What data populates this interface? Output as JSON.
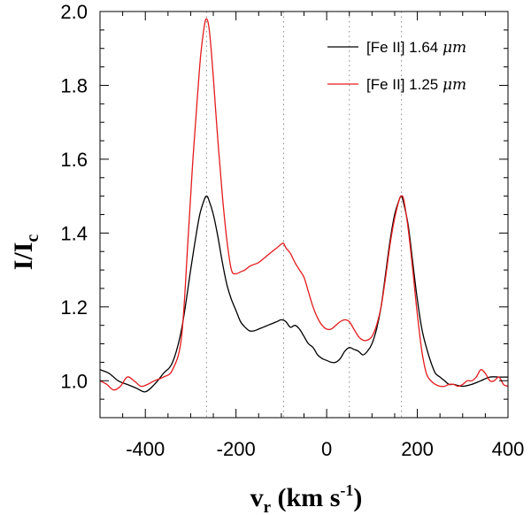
{
  "chart_data": {
    "type": "line",
    "title": "",
    "xlabel": {
      "main": "v",
      "sub": "r",
      "units_pre": " (km s",
      "units_sup": "-1",
      "units_post": ")"
    },
    "ylabel": {
      "main": "I/I",
      "sub": "c"
    },
    "xlim": [
      -500,
      400
    ],
    "ylim": [
      0.9,
      2.0
    ],
    "xticks": [
      -400,
      -200,
      0,
      200,
      400
    ],
    "xtick_labels": [
      "-400",
      "-200",
      "0",
      "200",
      "400"
    ],
    "yticks": [
      1.0,
      1.2,
      1.4,
      1.6,
      1.8,
      2.0
    ],
    "ytick_labels": [
      "1.0",
      "1.2",
      "1.4",
      "1.6",
      "1.8",
      "2.0"
    ],
    "reference_lines_x": [
      -265,
      -95,
      50,
      165
    ],
    "legend_position": "top-right",
    "series": [
      {
        "name": "[Fe II] 1.64 μm",
        "label_main": "[Fe II] 1.64 ",
        "label_unit": "μm",
        "color": "#000000",
        "x": [
          -500,
          -480,
          -460,
          -440,
          -420,
          -400,
          -380,
          -360,
          -340,
          -320,
          -300,
          -290,
          -280,
          -270,
          -265,
          -260,
          -250,
          -240,
          -230,
          -220,
          -210,
          -200,
          -190,
          -180,
          -170,
          -160,
          -150,
          -140,
          -130,
          -120,
          -110,
          -100,
          -90,
          -80,
          -70,
          -60,
          -50,
          -40,
          -30,
          -20,
          -10,
          0,
          10,
          20,
          30,
          40,
          50,
          60,
          70,
          80,
          90,
          100,
          110,
          120,
          130,
          140,
          150,
          160,
          165,
          170,
          180,
          190,
          200,
          210,
          220,
          230,
          240,
          250,
          260,
          270,
          280,
          300,
          320,
          340,
          360,
          380,
          400
        ],
        "y": [
          1.03,
          1.02,
          1.0,
          0.99,
          0.98,
          0.97,
          0.99,
          1.02,
          1.05,
          1.14,
          1.3,
          1.38,
          1.45,
          1.49,
          1.5,
          1.49,
          1.45,
          1.39,
          1.32,
          1.26,
          1.22,
          1.19,
          1.16,
          1.145,
          1.135,
          1.135,
          1.14,
          1.145,
          1.15,
          1.155,
          1.16,
          1.165,
          1.16,
          1.145,
          1.15,
          1.14,
          1.12,
          1.1,
          1.09,
          1.07,
          1.06,
          1.055,
          1.05,
          1.05,
          1.06,
          1.08,
          1.09,
          1.085,
          1.08,
          1.07,
          1.08,
          1.1,
          1.14,
          1.2,
          1.29,
          1.38,
          1.45,
          1.49,
          1.5,
          1.48,
          1.42,
          1.32,
          1.22,
          1.14,
          1.09,
          1.05,
          1.02,
          1.01,
          1.0,
          0.99,
          0.99,
          0.985,
          0.99,
          1.0,
          1.01,
          1.01,
          1.01
        ]
      },
      {
        "name": "[Fe II] 1.25 μm",
        "label_main": "[Fe II] 1.25 ",
        "label_unit": "μm",
        "color": "#e41a1c",
        "x": [
          -500,
          -485,
          -470,
          -455,
          -440,
          -425,
          -410,
          -395,
          -380,
          -360,
          -340,
          -320,
          -305,
          -295,
          -285,
          -278,
          -270,
          -265,
          -260,
          -255,
          -250,
          -240,
          -230,
          -220,
          -210,
          -200,
          -190,
          -180,
          -170,
          -160,
          -150,
          -140,
          -130,
          -120,
          -110,
          -100,
          -95,
          -90,
          -80,
          -70,
          -60,
          -50,
          -40,
          -30,
          -20,
          -10,
          0,
          10,
          20,
          30,
          40,
          50,
          60,
          70,
          80,
          90,
          100,
          110,
          120,
          130,
          140,
          150,
          160,
          165,
          170,
          180,
          190,
          200,
          210,
          220,
          230,
          240,
          250,
          260,
          270,
          280,
          290,
          300,
          310,
          320,
          330,
          340,
          350,
          360,
          370,
          380,
          390,
          400
        ],
        "y": [
          1.0,
          0.99,
          0.975,
          0.985,
          1.01,
          1.0,
          0.985,
          0.99,
          1.0,
          1.01,
          1.03,
          1.12,
          1.4,
          1.6,
          1.77,
          1.88,
          1.96,
          1.98,
          1.96,
          1.9,
          1.82,
          1.65,
          1.5,
          1.38,
          1.3,
          1.29,
          1.295,
          1.3,
          1.31,
          1.315,
          1.32,
          1.33,
          1.34,
          1.35,
          1.36,
          1.37,
          1.372,
          1.36,
          1.345,
          1.32,
          1.3,
          1.28,
          1.24,
          1.2,
          1.17,
          1.15,
          1.14,
          1.14,
          1.15,
          1.16,
          1.165,
          1.16,
          1.14,
          1.12,
          1.11,
          1.11,
          1.12,
          1.15,
          1.2,
          1.28,
          1.37,
          1.44,
          1.49,
          1.5,
          1.49,
          1.41,
          1.3,
          1.18,
          1.08,
          1.02,
          1.0,
          0.99,
          0.985,
          0.985,
          0.99,
          0.99,
          0.985,
          0.99,
          1.0,
          1.0,
          1.01,
          1.03,
          1.02,
          1.0,
          1.0,
          1.01,
          0.99,
          0.985
        ]
      }
    ]
  }
}
